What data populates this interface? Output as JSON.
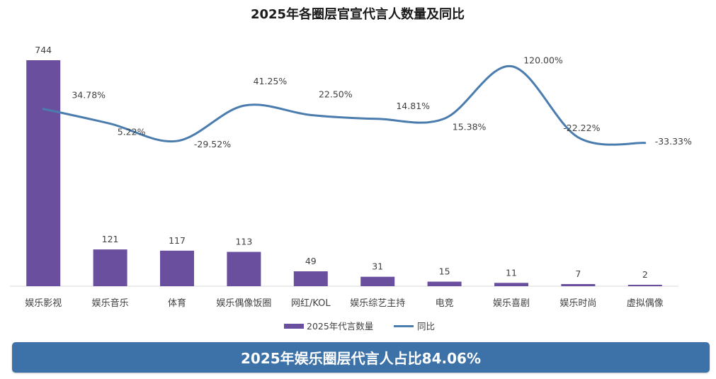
{
  "chart_data": {
    "type": "bar+line",
    "title": "2025年各圈层官宣代言人数量及同比",
    "categories": [
      "娱乐影视",
      "娱乐音乐",
      "体育",
      "娱乐偶像饭圈",
      "网红/KOL",
      "娱乐综艺主持",
      "电竞",
      "娱乐喜剧",
      "娱乐时尚",
      "虚拟偶像"
    ],
    "series": [
      {
        "name": "2025年代言数量",
        "type": "bar",
        "color": "#6a4f9e",
        "values": [
          744,
          121,
          117,
          113,
          49,
          31,
          15,
          11,
          7,
          2
        ],
        "labels": [
          "744",
          "121",
          "117",
          "113",
          "49",
          "31",
          "15",
          "11",
          "7",
          "2"
        ]
      },
      {
        "name": "同比",
        "type": "line",
        "color": "#4a7cae",
        "values": [
          34.78,
          5.22,
          -29.52,
          41.25,
          22.5,
          14.81,
          15.38,
          120.0,
          -22.22,
          -33.33
        ],
        "labels": [
          "34.78%",
          "5.22%",
          "-29.52%",
          "41.25%",
          "22.50%",
          "14.81%",
          "15.38%",
          "120.00%",
          "-22.22%",
          "-33.33%"
        ]
      }
    ],
    "bar_ylim": [
      0,
      760
    ],
    "line_ylim": [
      -130,
      125
    ],
    "legend": "bottom"
  },
  "banner": {
    "text": "2025年娱乐圈层代言人占比84.06%"
  }
}
